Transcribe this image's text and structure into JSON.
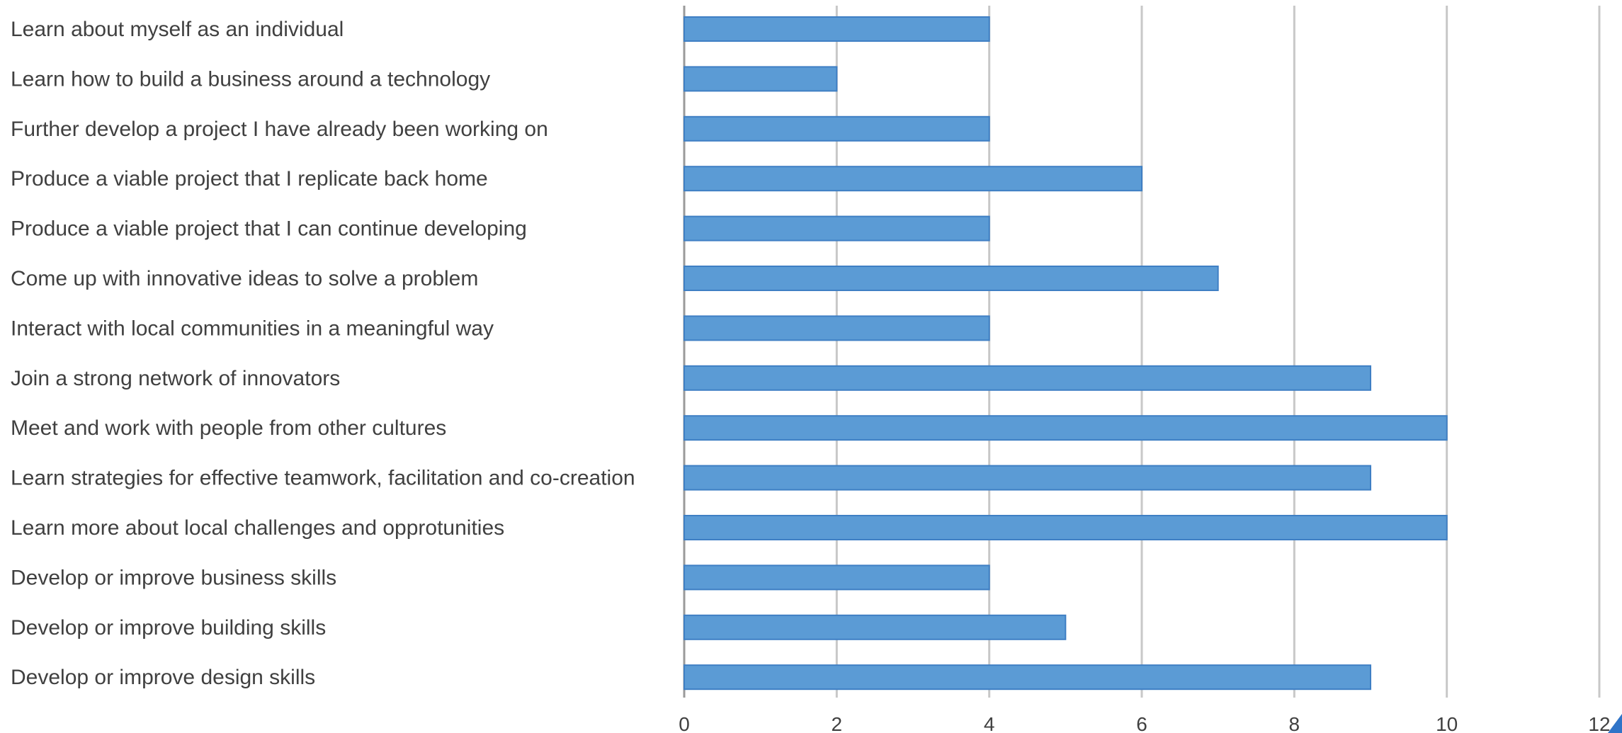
{
  "chart_data": {
    "type": "bar",
    "orientation": "horizontal",
    "categories": [
      "Learn about myself as an individual",
      "Learn how to build a business around a technology",
      "Further develop a project I have already been working on",
      "Produce a viable project that I replicate back home",
      "Produce a viable project that I can continue developing",
      "Come up with innovative ideas to solve a problem",
      "Interact with local communities in a meaningful way",
      "Join a strong network of innovators",
      "Meet and work with people from other cultures",
      "Learn strategies for effective teamwork, facilitation and co-creation",
      "Learn more about local challenges and opprotunities",
      "Develop or improve business skills",
      "Develop or improve building skills",
      "Develop or improve design skills"
    ],
    "values": [
      4,
      2,
      4,
      6,
      4,
      7,
      4,
      9,
      10,
      9,
      10,
      4,
      5,
      9
    ],
    "xlim": [
      0,
      12
    ],
    "xticks": [
      "0",
      "2",
      "4",
      "6",
      "8",
      "10",
      "12"
    ],
    "title": "",
    "xlabel": "",
    "ylabel": "",
    "grid": "vertical",
    "legend": "none",
    "bar_color": "#5b9bd5",
    "bar_edge_color": "#3f7fc4",
    "grid_color": "#c8c8c8",
    "label_color": "#404040"
  }
}
